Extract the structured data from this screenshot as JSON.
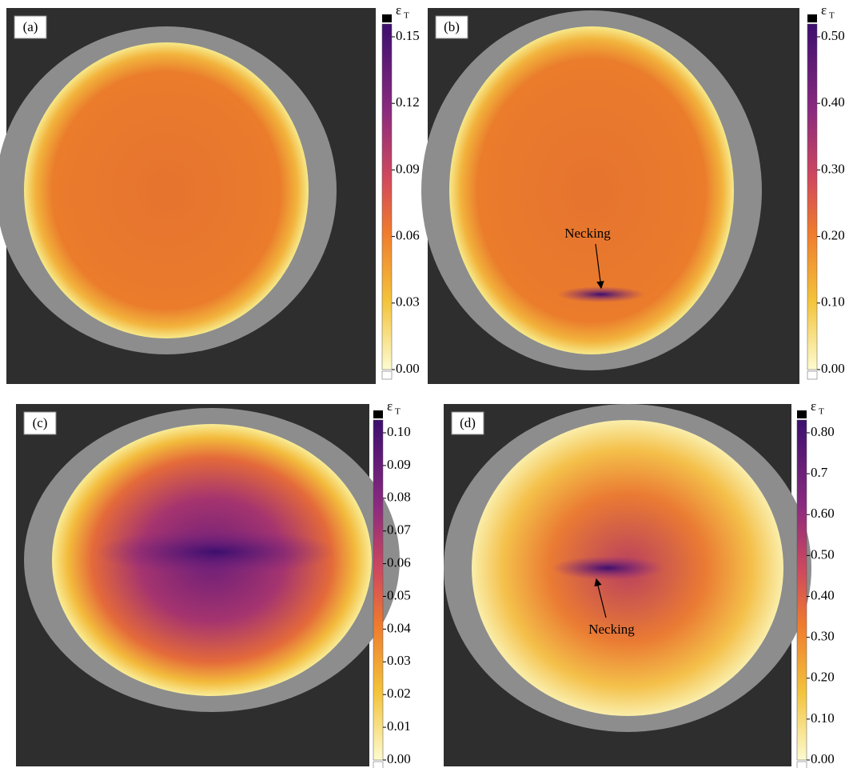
{
  "panels": [
    {
      "label": "(a)",
      "colorbar": {
        "symbol": "ε",
        "subscript": "T",
        "ticks": [
          "0.15",
          "0.12",
          "0.09",
          "0.06",
          "0.03",
          "0.00"
        ]
      }
    },
    {
      "label": "(b)",
      "colorbar": {
        "symbol": "ε",
        "subscript": "T",
        "ticks": [
          "0.50",
          "0.40",
          "0.30",
          "0.20",
          "0.10",
          "0.00"
        ]
      },
      "annotation": "Necking"
    },
    {
      "label": "(c)",
      "colorbar": {
        "symbol": "ε",
        "subscript": "T",
        "ticks": [
          "0.10",
          "0.09",
          "0.08",
          "0.07",
          "0.06",
          "0.05",
          "0.04",
          "0.03",
          "0.02",
          "0.01",
          "0.00"
        ]
      }
    },
    {
      "label": "(d)",
      "colorbar": {
        "symbol": "ε",
        "subscript": "T",
        "ticks": [
          "0.80",
          "0.7",
          "0.60",
          "0.50",
          "0.40",
          "0.30",
          "0.20",
          "0.10",
          "0.00"
        ]
      },
      "annotation": "Necking"
    }
  ]
}
